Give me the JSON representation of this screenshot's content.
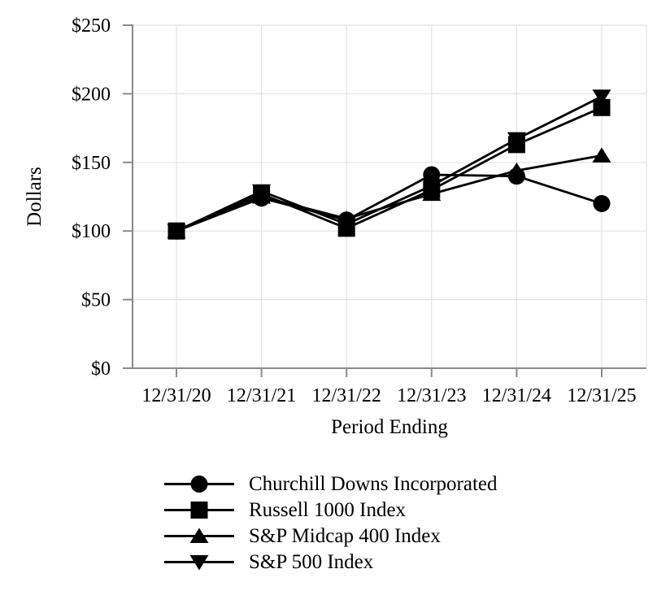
{
  "chart_data": {
    "type": "line",
    "title": "",
    "xlabel": "Period Ending",
    "ylabel": "Dollars",
    "ylim": [
      0,
      250
    ],
    "y_tick_values": [
      0,
      50,
      100,
      150,
      200,
      250
    ],
    "y_tick_labels": [
      "$0",
      "$50",
      "$100",
      "$150",
      "$200",
      "$250"
    ],
    "categories": [
      "12/31/20",
      "12/31/21",
      "12/31/22",
      "12/31/23",
      "12/31/24",
      "12/31/25"
    ],
    "series": [
      {
        "name": "Churchill Downs Incorporated",
        "marker": "circle",
        "values": [
          100,
          124,
          108,
          141,
          140,
          120
        ]
      },
      {
        "name": "Russell 1000 Index",
        "marker": "square",
        "values": [
          100,
          127,
          102,
          130,
          163,
          190
        ]
      },
      {
        "name": "S&P Midcap 400 Index",
        "marker": "triangle-up",
        "values": [
          100,
          125,
          109,
          127,
          144,
          155
        ]
      },
      {
        "name": "S&P 500 Index",
        "marker": "triangle-down",
        "values": [
          100,
          129,
          105,
          133,
          167,
          198
        ]
      }
    ],
    "grid": true,
    "legend_position": "bottom",
    "colors": {
      "series": "#000000",
      "grid": "#e3e3e3",
      "axis": "#8a8a8a",
      "text": "#000000"
    }
  }
}
